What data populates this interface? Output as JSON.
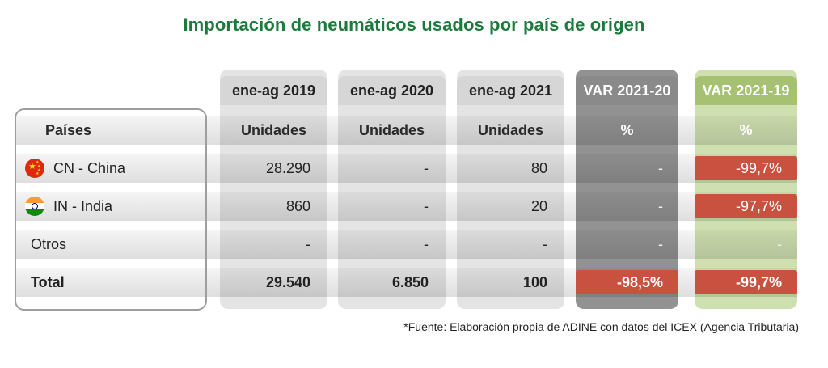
{
  "title": "Importación de neumáticos usados por país de origen",
  "columns": [
    {
      "period": "ene-ag 2019",
      "unit": "Unidades"
    },
    {
      "period": "ene-ag 2020",
      "unit": "Unidades"
    },
    {
      "period": "ene-ag 2021",
      "unit": "Unidades"
    },
    {
      "period": "VAR 2021-20",
      "unit": "%"
    },
    {
      "period": "VAR 2021-19",
      "unit": "%"
    }
  ],
  "row_header": "Países",
  "rows": [
    {
      "country": "CN - China",
      "flag": "china-flag-icon",
      "v2019": "28.290",
      "v2020": "-",
      "v2021": "80",
      "var2120": "-",
      "var2119": "-99,7%"
    },
    {
      "country": "IN - India",
      "flag": "india-flag-icon",
      "v2019": "860",
      "v2020": "-",
      "v2021": "20",
      "var2120": "-",
      "var2119": "-97,7%"
    },
    {
      "country": "Otros",
      "flag": "",
      "v2019": "-",
      "v2020": "-",
      "v2021": "-",
      "var2120": "-",
      "var2119": "-"
    }
  ],
  "total": {
    "label": "Total",
    "v2019": "29.540",
    "v2020": "6.850",
    "v2021": "100",
    "var2120": "-98,5%",
    "var2119": "-99,7%"
  },
  "source": "*Fuente: Elaboración propia de ADINE con datos del ICEX (Agencia Tributaria)",
  "colors": {
    "title": "#1e7a3c",
    "negative": "#c9513f",
    "var2120_column": "#929292",
    "var2119_column": "#cfe0b0"
  },
  "chart_data": {
    "type": "table",
    "title": "Importación de neumáticos usados por país de origen",
    "headers": [
      "Países",
      "ene-ag 2019",
      "ene-ag 2020",
      "ene-ag 2021",
      "VAR 2021-20",
      "VAR 2021-19"
    ],
    "units": [
      "",
      "Unidades",
      "Unidades",
      "Unidades",
      "%",
      "%"
    ],
    "rows": [
      [
        "CN - China",
        28290,
        null,
        80,
        null,
        -99.7
      ],
      [
        "IN - India",
        860,
        null,
        20,
        null,
        -97.7
      ],
      [
        "Otros",
        null,
        null,
        null,
        null,
        null
      ],
      [
        "Total",
        29540,
        6850,
        100,
        -98.5,
        -99.7
      ]
    ]
  }
}
